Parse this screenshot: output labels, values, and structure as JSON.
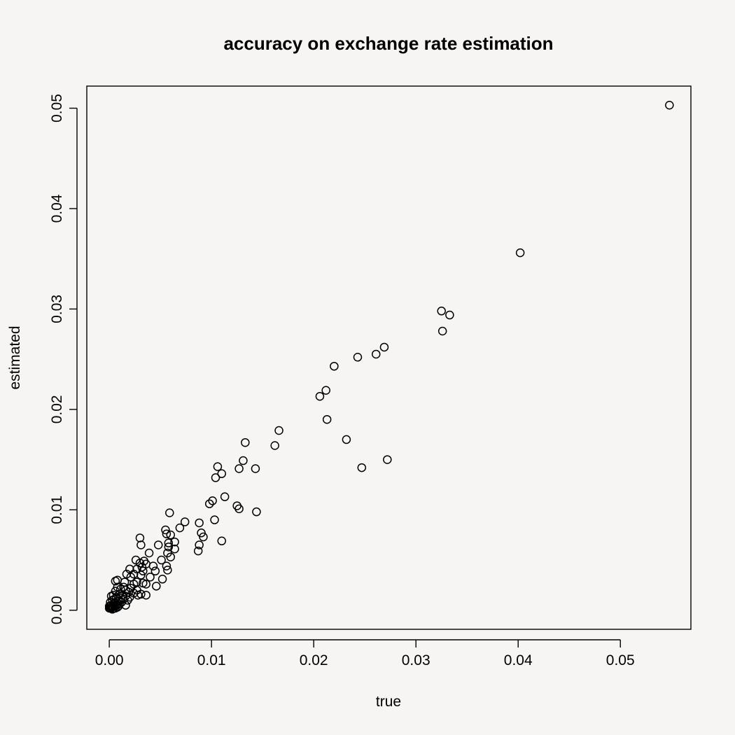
{
  "chart_data": {
    "type": "scatter",
    "title": "accuracy on exchange rate estimation",
    "xlabel": "true",
    "ylabel": "estimated",
    "xlim": [
      -0.0022,
      0.0569
    ],
    "ylim": [
      -0.0019,
      0.0522
    ],
    "x_ticks": [
      {
        "value": 0,
        "label": "0.00"
      },
      {
        "value": 0.01,
        "label": "0.01"
      },
      {
        "value": 0.02,
        "label": "0.02"
      },
      {
        "value": 0.03,
        "label": "0.03"
      },
      {
        "value": 0.04,
        "label": "0.04"
      },
      {
        "value": 0.05,
        "label": "0.05"
      }
    ],
    "y_ticks": [
      {
        "value": 0,
        "label": "0.00"
      },
      {
        "value": 0.01,
        "label": "0.01"
      },
      {
        "value": 0.02,
        "label": "0.02"
      },
      {
        "value": 0.03,
        "label": "0.03"
      },
      {
        "value": 0.04,
        "label": "0.04"
      },
      {
        "value": 0.05,
        "label": "0.05"
      }
    ],
    "grid": false,
    "legend": "none",
    "series": [
      {
        "points": [
          [
            0.0548,
            0.0503
          ],
          [
            0.0402,
            0.0356
          ],
          [
            0.0325,
            0.0298
          ],
          [
            0.0333,
            0.0294
          ],
          [
            0.0326,
            0.0278
          ],
          [
            0.0269,
            0.0262
          ],
          [
            0.0261,
            0.0255
          ],
          [
            0.0243,
            0.0252
          ],
          [
            0.022,
            0.0243
          ],
          [
            0.0212,
            0.0219
          ],
          [
            0.0206,
            0.0213
          ],
          [
            0.0213,
            0.019
          ],
          [
            0.0232,
            0.017
          ],
          [
            0.0272,
            0.015
          ],
          [
            0.0247,
            0.0142
          ],
          [
            0.0166,
            0.0179
          ],
          [
            0.0133,
            0.0167
          ],
          [
            0.0162,
            0.0164
          ],
          [
            0.0131,
            0.0149
          ],
          [
            0.0143,
            0.0141
          ],
          [
            0.0127,
            0.0141
          ],
          [
            0.0106,
            0.0143
          ],
          [
            0.011,
            0.0136
          ],
          [
            0.0104,
            0.0132
          ],
          [
            0.0113,
            0.0113
          ],
          [
            0.0101,
            0.0109
          ],
          [
            0.0098,
            0.0106
          ],
          [
            0.0125,
            0.0104
          ],
          [
            0.0127,
            0.0101
          ],
          [
            0.0144,
            0.0098
          ],
          [
            0.0103,
            0.009
          ],
          [
            0.0059,
            0.0097
          ],
          [
            0.0074,
            0.0088
          ],
          [
            0.0088,
            0.0087
          ],
          [
            0.0069,
            0.0082
          ],
          [
            0.0055,
            0.008
          ],
          [
            0.009,
            0.0077
          ],
          [
            0.0092,
            0.0073
          ],
          [
            0.0056,
            0.0076
          ],
          [
            0.006,
            0.0075
          ],
          [
            0.003,
            0.0072
          ],
          [
            0.011,
            0.0069
          ],
          [
            0.0064,
            0.0068
          ],
          [
            0.0058,
            0.0067
          ],
          [
            0.0048,
            0.0065
          ],
          [
            0.0031,
            0.0065
          ],
          [
            0.0088,
            0.0065
          ],
          [
            0.0058,
            0.0063
          ],
          [
            0.0064,
            0.0061
          ],
          [
            0.0087,
            0.0059
          ],
          [
            0.0057,
            0.0057
          ],
          [
            0.0039,
            0.0057
          ],
          [
            0.006,
            0.0053
          ],
          [
            0.0026,
            0.005
          ],
          [
            0.0034,
            0.0049
          ],
          [
            0.0051,
            0.005
          ],
          [
            0.003,
            0.0047
          ],
          [
            0.0036,
            0.0046
          ],
          [
            0.0043,
            0.0044
          ],
          [
            0.0056,
            0.0044
          ],
          [
            0.0032,
            0.0043
          ],
          [
            0.002,
            0.0041
          ],
          [
            0.0027,
            0.0041
          ],
          [
            0.0057,
            0.004
          ],
          [
            0.0045,
            0.0039
          ],
          [
            0.0033,
            0.0039
          ],
          [
            0.0017,
            0.0036
          ],
          [
            0.0024,
            0.0036
          ],
          [
            0.0031,
            0.0035
          ],
          [
            0.0021,
            0.0033
          ],
          [
            0.004,
            0.0033
          ],
          [
            0.0052,
            0.0031
          ],
          [
            0.0008,
            0.003
          ],
          [
            0.0006,
            0.0029
          ],
          [
            0.0015,
            0.0028
          ],
          [
            0.0027,
            0.0028
          ],
          [
            0.0033,
            0.0027
          ],
          [
            0.0024,
            0.0026
          ],
          [
            0.0036,
            0.0026
          ],
          [
            0.0046,
            0.0024
          ],
          [
            0.0008,
            0.0023
          ],
          [
            0.0014,
            0.0023
          ],
          [
            0.0021,
            0.0022
          ],
          [
            0.0011,
            0.0021
          ],
          [
            0.0016,
            0.002
          ],
          [
            0.0027,
            0.002
          ],
          [
            0.0006,
            0.0019
          ],
          [
            0.0019,
            0.0018
          ],
          [
            0.0024,
            0.0017
          ],
          [
            0.0031,
            0.0016
          ],
          [
            0.0036,
            0.0015
          ],
          [
            0.0028,
            0.0015
          ],
          [
            0.001,
            0.0016
          ],
          [
            0.0013,
            0.0015
          ],
          [
            0.0004,
            0.0015
          ],
          [
            0.0002,
            0.0014
          ],
          [
            0.0016,
            0.0014
          ],
          [
            0.002,
            0.0013
          ],
          [
            0.0007,
            0.0013
          ],
          [
            0.0011,
            0.0012
          ],
          [
            0.0005,
            0.0011
          ],
          [
            0.0014,
            0.0011
          ],
          [
            0.0018,
            0.001
          ],
          [
            0.0003,
            0.001
          ],
          [
            0.0009,
            0.0009
          ],
          [
            0.0001,
            0.0008
          ],
          [
            0.0012,
            0.0008
          ],
          [
            0.0006,
            0.0007
          ],
          [
            0.0004,
            0.0006
          ],
          [
            0.001,
            0.0006
          ],
          [
            0.0016,
            0.0005
          ],
          [
            0.0002,
            0.0005
          ],
          [
            0.0007,
            0.0005
          ],
          [
            0.0001,
            0.0004
          ],
          [
            0.0005,
            0.0004
          ],
          [
            0.0003,
            0.0003
          ],
          [
            0.0008,
            0.0003
          ],
          [
            0.0002,
            0.0003
          ],
          [
            0.0004,
            0.0002
          ],
          [
            0.0006,
            0.0002
          ],
          [
            0.0001,
            0.0002
          ],
          [
            0.0003,
            0.0001
          ],
          [
            0.0,
            0.0004
          ],
          [
            0.0,
            0.0002
          ],
          [
            0.0009,
            0.0004
          ]
        ]
      }
    ]
  }
}
